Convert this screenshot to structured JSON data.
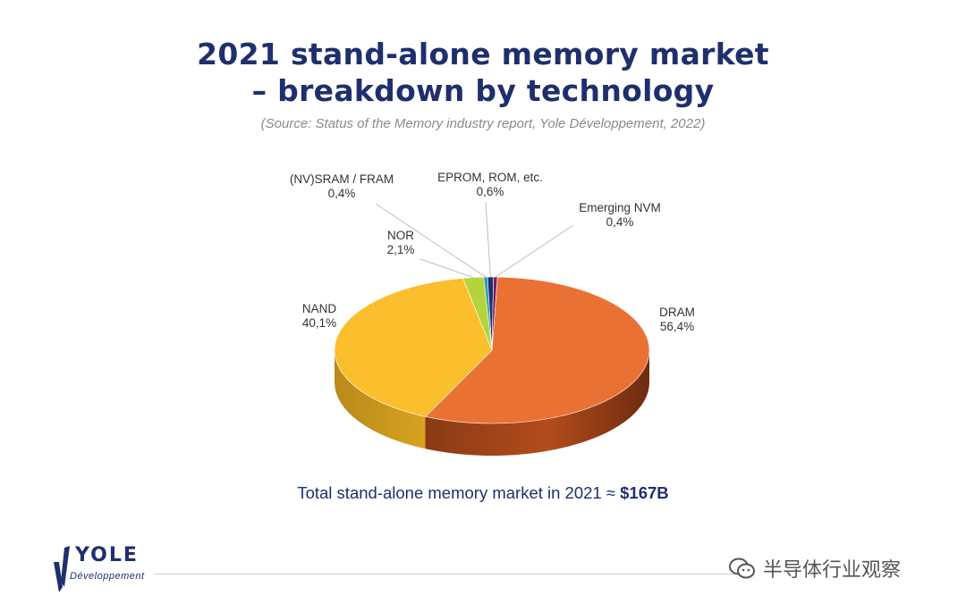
{
  "slide": {
    "title_line1": "2021 stand-alone memory market",
    "title_line2": "– breakdown by technology",
    "source": "(Source: Status of the Memory industry report, Yole Développement, 2022)",
    "total_text": "Total stand-alone memory market in 2021 ≈ ",
    "total_value": "$167B"
  },
  "logo": {
    "word": "YOLE",
    "sub": "Développement"
  },
  "watermark": {
    "text": "半导体行业观察"
  },
  "chart_data": {
    "type": "pie",
    "style": "3d",
    "slices": [
      {
        "label": "DRAM",
        "value": 56.4,
        "display": "56,4%",
        "color": "#ea7134"
      },
      {
        "label": "NAND",
        "value": 40.1,
        "display": "40,1%",
        "color": "#fbbf2d"
      },
      {
        "label": "NOR",
        "value": 2.1,
        "display": "2,1%",
        "color": "#b5d33d"
      },
      {
        "label": "(NV)SRAM / FRAM",
        "value": 0.4,
        "display": "0,4%",
        "color": "#2f9fb0"
      },
      {
        "label": "EPROM, ROM, etc.",
        "value": 0.6,
        "display": "0,6%",
        "color": "#1f2f6e"
      },
      {
        "label": "Emerging NVM",
        "value": 0.4,
        "display": "0,4%",
        "color": "#7a1f5a"
      }
    ]
  }
}
